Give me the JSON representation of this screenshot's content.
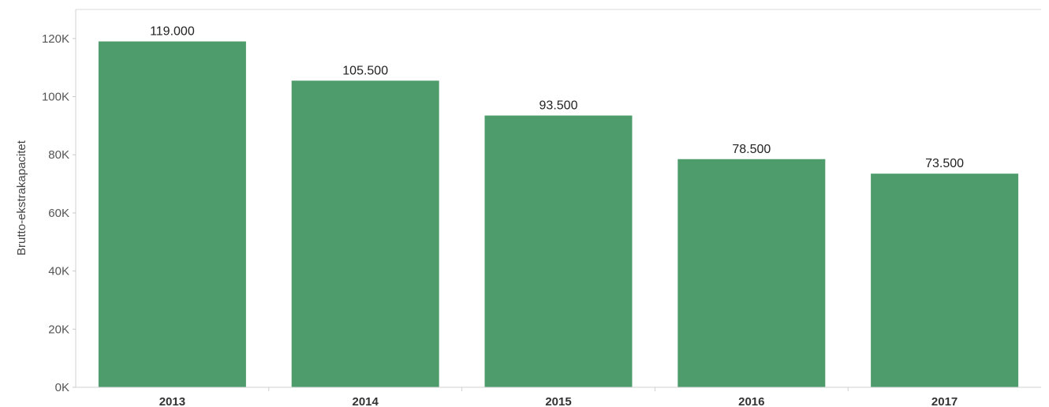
{
  "chart_data": {
    "type": "bar",
    "categories": [
      "2013",
      "2014",
      "2015",
      "2016",
      "2017"
    ],
    "values": [
      119000,
      105500,
      93500,
      78500,
      73500
    ],
    "data_labels": [
      "119.000",
      "105.500",
      "93.500",
      "78.500",
      "73.500"
    ],
    "ylabel": "Brutto-ekstrakapacitet",
    "xlabel": "",
    "ylim": [
      0,
      130000
    ],
    "yticks": [
      0,
      20000,
      40000,
      60000,
      80000,
      100000,
      120000
    ],
    "ytick_labels": [
      "0K",
      "20K",
      "40K",
      "60K",
      "80K",
      "100K",
      "120K"
    ],
    "bar_color": "#4e9c6b",
    "grid": false,
    "legend": "none"
  }
}
